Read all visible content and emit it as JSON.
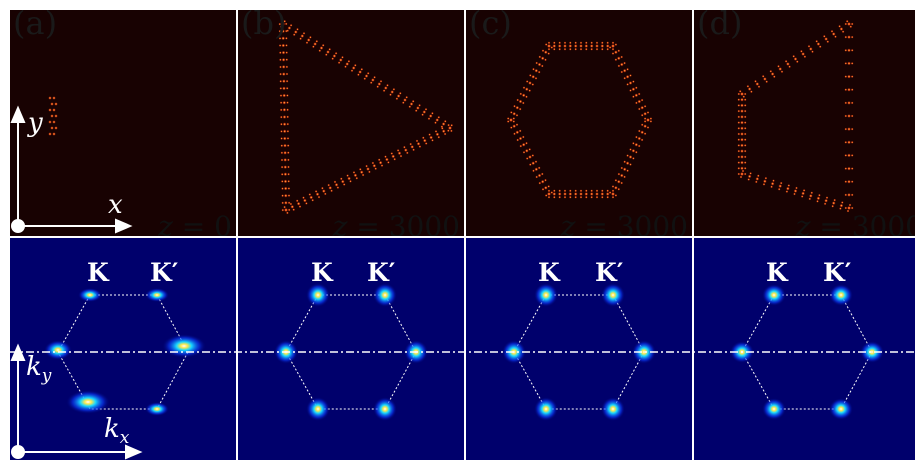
{
  "figure": {
    "panels": [
      {
        "label": "(a)",
        "z_value": "0",
        "beam_shape": "point"
      },
      {
        "label": "(b)",
        "z_value": "3000",
        "beam_shape": "triangle"
      },
      {
        "label": "(c)",
        "z_value": "3000",
        "beam_shape": "hexagon"
      },
      {
        "label": "(d)",
        "z_value": "3000",
        "beam_shape": "trapezoid"
      }
    ],
    "z_symbol": "z",
    "equals": "=",
    "real_axes": {
      "x": "x",
      "y": "y"
    },
    "k_axes": {
      "kx": "k",
      "kx_sub": "x",
      "ky": "k",
      "ky_sub": "y"
    },
    "valley_labels": {
      "K": "K",
      "Kp": "K′"
    },
    "colors": {
      "real_bg": "#180202",
      "k_bg": "#00006c",
      "separator": "#ffffff",
      "peak": "#ffe94d"
    }
  }
}
